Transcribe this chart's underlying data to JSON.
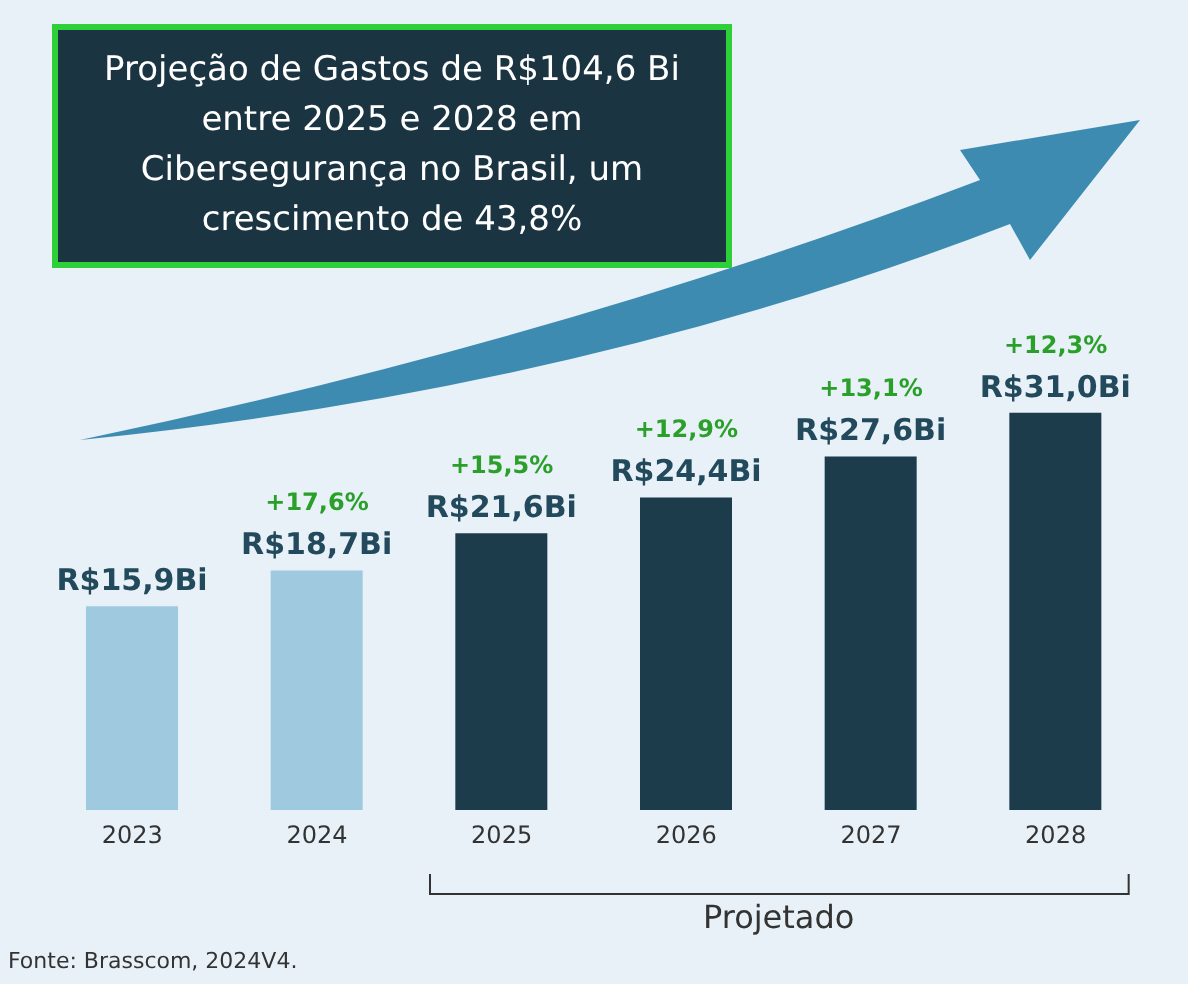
{
  "chart_data": {
    "type": "bar",
    "title": "Projeção de Gastos de R$104,6 Bi entre 2025 e 2028 em Cibersegurança no Brasil, um crescimento de 43,8%",
    "categories": [
      "2023",
      "2024",
      "2025",
      "2026",
      "2027",
      "2028"
    ],
    "values": [
      15.9,
      18.7,
      21.6,
      24.4,
      27.6,
      31.0
    ],
    "colors": [
      "#9fc9de",
      "#9fc9de",
      "#1c3b4b",
      "#1c3b4b",
      "#1c3b4b",
      "#1c3b4b"
    ],
    "value_labels": [
      "R$15,9Bi",
      "R$18,7Bi",
      "R$21,6Bi",
      "R$24,4Bi",
      "R$27,6Bi",
      "R$31,0Bi"
    ],
    "annotations": [
      {
        "text": "+17,6%",
        "x": "2024",
        "y": 18.7
      },
      {
        "text": "+15,5%",
        "x": "2025",
        "y": 21.6
      },
      {
        "text": "+12,9%",
        "x": "2026",
        "y": 24.4
      },
      {
        "text": "+13,1%",
        "x": "2027",
        "y": 27.6
      },
      {
        "text": "+12,3%",
        "x": "2028",
        "y": 31.0
      },
      "Projetado",
      "Fonte: Brasscom, 2024V4."
    ]
  }
}
